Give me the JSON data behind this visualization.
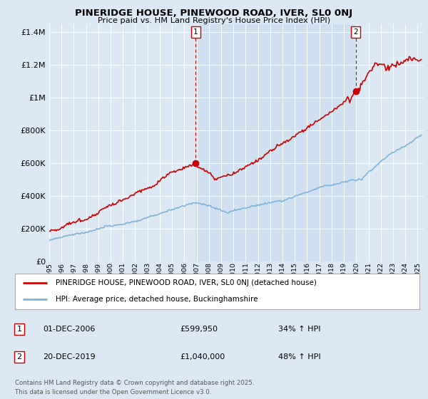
{
  "title": "PINERIDGE HOUSE, PINEWOOD ROAD, IVER, SL0 0NJ",
  "subtitle": "Price paid vs. HM Land Registry's House Price Index (HPI)",
  "background_color": "#dce9f5",
  "plot_bg_color": "#dce9f5",
  "shaded_region_color": "#cfe0f0",
  "red_line_color": "#cc0000",
  "blue_line_color": "#7fb3d9",
  "ylim": [
    0,
    1400000
  ],
  "yticks": [
    0,
    200000,
    400000,
    600000,
    800000,
    1000000,
    1200000,
    1400000
  ],
  "ytick_labels": [
    "£0",
    "£200K",
    "£400K",
    "£600K",
    "£800K",
    "£1M",
    "£1.2M",
    "£1.4M"
  ],
  "sale1_label": "1",
  "sale1_date": "01-DEC-2006",
  "sale1_price": "£599,950",
  "sale1_hpi": "34% ↑ HPI",
  "sale1_x": 2006.92,
  "sale1_y_red": 599950,
  "sale2_label": "2",
  "sale2_date": "20-DEC-2019",
  "sale2_price": "£1,040,000",
  "sale2_hpi": "48% ↑ HPI",
  "sale2_x": 2019.96,
  "sale2_y_red": 1040000,
  "legend_line1": "PINERIDGE HOUSE, PINEWOOD ROAD, IVER, SL0 0NJ (detached house)",
  "legend_line2": "HPI: Average price, detached house, Buckinghamshire",
  "footer1": "Contains HM Land Registry data © Crown copyright and database right 2025.",
  "footer2": "This data is licensed under the Open Government Licence v3.0.",
  "xlim_start": 1995,
  "xlim_end": 2025.5
}
